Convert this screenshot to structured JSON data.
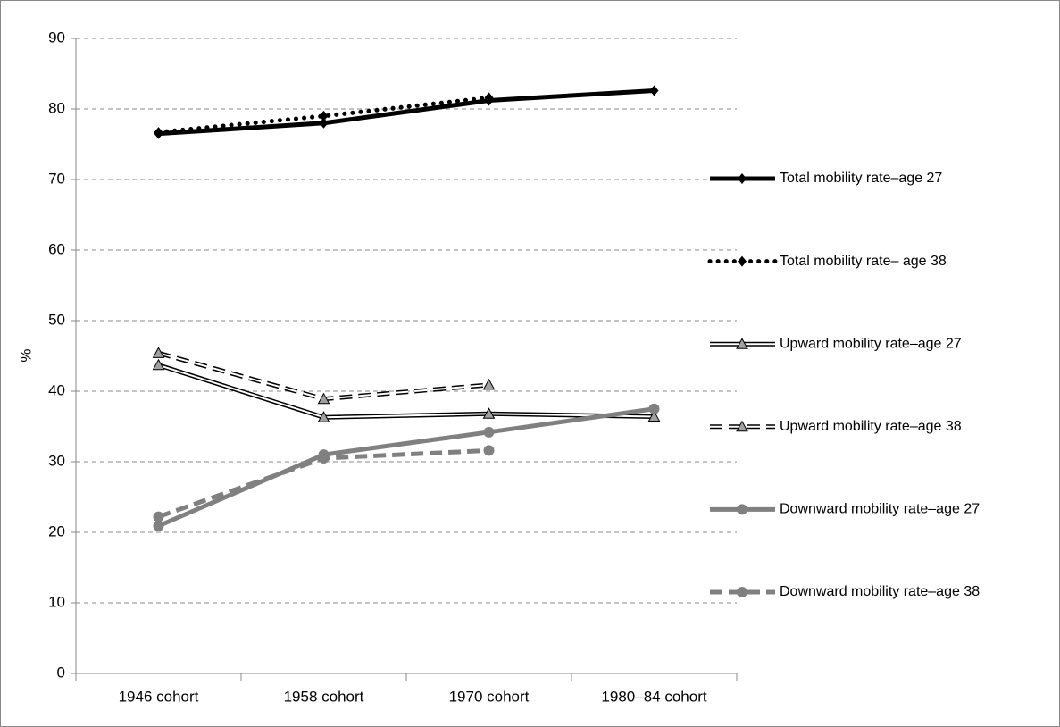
{
  "chart_data": {
    "type": "line",
    "y_label": "%",
    "categories": [
      "1946 cohort",
      "1958 cohort",
      "1970 cohort",
      "1980–84 cohort"
    ],
    "ylim": [
      0,
      90
    ],
    "yticks": [
      0,
      10,
      20,
      30,
      40,
      50,
      60,
      70,
      80,
      90
    ],
    "grid": true,
    "legend": "right",
    "series": [
      {
        "name": "Total mobility rate–age 27",
        "color": "#000000",
        "line_style": "solid",
        "marker": "diamond",
        "values": [
          76.5,
          78.0,
          81.2,
          82.6
        ]
      },
      {
        "name": "Total mobility rate– age 38",
        "color": "#000000",
        "line_style": "dotted",
        "marker": "diamond",
        "values": [
          76.7,
          79.0,
          81.6,
          null
        ]
      },
      {
        "name": "Upward mobility rate–age 27",
        "color": "#000000",
        "line_style": "double",
        "marker": "triangle",
        "values": [
          43.7,
          36.3,
          36.8,
          36.4
        ]
      },
      {
        "name": "Upward mobility rate–age 38",
        "color": "#000000",
        "line_style": "double-dashed",
        "marker": "triangle",
        "values": [
          45.4,
          38.9,
          40.9,
          null
        ]
      },
      {
        "name": "Downward mobility rate–age 27",
        "color": "#808080",
        "line_style": "solid",
        "marker": "circle",
        "values": [
          20.9,
          31.0,
          34.2,
          37.5
        ]
      },
      {
        "name": "Downward mobility rate–age 38",
        "color": "#808080",
        "line_style": "dashed",
        "marker": "circle",
        "values": [
          22.2,
          30.5,
          31.6,
          null
        ]
      }
    ]
  }
}
